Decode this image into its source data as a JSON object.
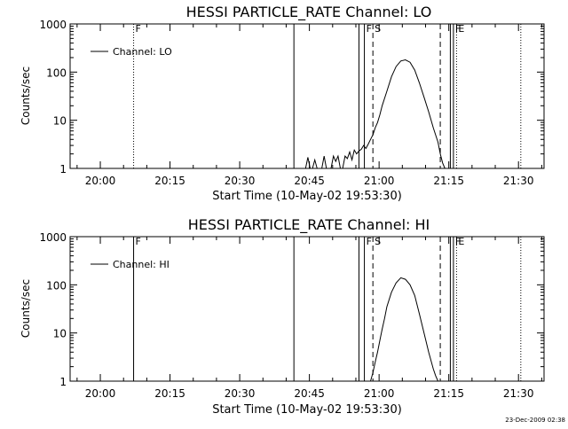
{
  "footer_text": "23-Dec-2009 02:38",
  "colors": {
    "line": "#000000",
    "background": "#ffffff"
  },
  "chart_data": [
    {
      "type": "line",
      "title": "HESSI PARTICLE_RATE Channel: LO",
      "xlabel": "Start Time (10-May-02 19:53:30)",
      "ylabel": "Counts/sec",
      "yscale": "log",
      "xlim": [
        "19:53:30",
        "21:35:30"
      ],
      "ylim": [
        1,
        1000
      ],
      "xtick_labels": [
        "20:00",
        "20:15",
        "20:30",
        "20:45",
        "21:00",
        "21:15",
        "21:30"
      ],
      "ytick_labels": [
        "1",
        "10",
        "100",
        "1000"
      ],
      "legend": {
        "position": "top-left",
        "entries": [
          "Channel: LO"
        ]
      },
      "series": [
        {
          "name": "Channel: LO",
          "x": [
            "20:44:10",
            "20:44:40",
            "20:45:10",
            "20:45:40",
            "20:46:10",
            "20:46:40",
            "20:47:10",
            "20:47:40",
            "20:48:10",
            "20:48:40",
            "20:49:10",
            "20:49:40",
            "20:50:10",
            "20:50:40",
            "20:51:10",
            "20:51:40",
            "20:52:10",
            "20:52:40",
            "20:53:10",
            "20:53:40",
            "20:54:10",
            "20:54:40",
            "20:55:10",
            "20:55:40",
            "20:56:10",
            "20:56:40",
            "20:57:10",
            "20:57:40",
            "20:58:10",
            "20:58:40",
            "20:59:10",
            "20:59:40",
            "21:00:10",
            "21:00:40",
            "21:01:40",
            "21:02:40",
            "21:03:40",
            "21:04:40",
            "21:05:40",
            "21:06:40",
            "21:07:40",
            "21:08:40",
            "21:09:40",
            "21:10:40",
            "21:11:40",
            "21:12:40",
            "21:13:10",
            "21:13:40",
            "21:14:10"
          ],
          "y": [
            1,
            1.7,
            1,
            1,
            1.5,
            1,
            1,
            1,
            1.8,
            1,
            1,
            1,
            1.8,
            1.4,
            1.8,
            1,
            1,
            1.8,
            1.6,
            2.2,
            1.5,
            2.4,
            2,
            2.3,
            2.5,
            3,
            2.6,
            3.2,
            4,
            5,
            7,
            9,
            13,
            20,
            40,
            80,
            130,
            170,
            180,
            160,
            110,
            60,
            30,
            15,
            7,
            3.5,
            2,
            1.3,
            1
          ]
        }
      ],
      "vertical_markers": [
        {
          "x": "20:07:10",
          "style": "dotted",
          "label": "F"
        },
        {
          "x": "20:41:40",
          "style": "solid",
          "label": ""
        },
        {
          "x": "20:55:40",
          "style": "solid",
          "label": ""
        },
        {
          "x": "20:56:50",
          "style": "solid",
          "label": "F"
        },
        {
          "x": "20:58:40",
          "style": "dashed",
          "label": "S"
        },
        {
          "x": "21:13:10",
          "style": "dashed",
          "label": ""
        },
        {
          "x": "21:15:20",
          "style": "solid",
          "label": ""
        },
        {
          "x": "21:16:00",
          "style": "solid",
          "label": "F"
        },
        {
          "x": "21:16:40",
          "style": "dotted",
          "label": "E"
        },
        {
          "x": "21:30:30",
          "style": "dotted",
          "label": ""
        }
      ]
    },
    {
      "type": "line",
      "title": "HESSI PARTICLE_RATE Channel: HI",
      "xlabel": "Start Time (10-May-02 19:53:30)",
      "ylabel": "Counts/sec",
      "yscale": "log",
      "xlim": [
        "19:53:30",
        "21:35:30"
      ],
      "ylim": [
        1,
        1000
      ],
      "xtick_labels": [
        "20:00",
        "20:15",
        "20:30",
        "20:45",
        "21:00",
        "21:15",
        "21:30"
      ],
      "ytick_labels": [
        "1",
        "10",
        "100",
        "1000"
      ],
      "legend": {
        "position": "top-left",
        "entries": [
          "Channel: HI"
        ]
      },
      "series": [
        {
          "name": "Channel: HI",
          "x": [
            "20:58:10",
            "20:58:40",
            "20:59:10",
            "20:59:40",
            "21:00:10",
            "21:00:40",
            "21:01:10",
            "21:01:40",
            "21:02:40",
            "21:03:40",
            "21:04:40",
            "21:05:40",
            "21:06:40",
            "21:07:40",
            "21:08:40",
            "21:09:40",
            "21:10:40",
            "21:11:40",
            "21:12:10",
            "21:12:40"
          ],
          "y": [
            1,
            1.5,
            2.5,
            4,
            7,
            12,
            20,
            35,
            70,
            110,
            140,
            130,
            100,
            60,
            25,
            10,
            4,
            1.8,
            1.3,
            1
          ]
        }
      ],
      "vertical_markers": [
        {
          "x": "20:07:10",
          "style": "solid",
          "label": "F"
        },
        {
          "x": "20:41:40",
          "style": "solid",
          "label": ""
        },
        {
          "x": "20:55:40",
          "style": "solid",
          "label": ""
        },
        {
          "x": "20:56:50",
          "style": "solid",
          "label": "F"
        },
        {
          "x": "20:58:40",
          "style": "dashed",
          "label": "S"
        },
        {
          "x": "21:13:10",
          "style": "dashed",
          "label": ""
        },
        {
          "x": "21:15:20",
          "style": "solid",
          "label": ""
        },
        {
          "x": "21:16:00",
          "style": "solid",
          "label": "F"
        },
        {
          "x": "21:16:40",
          "style": "dotted",
          "label": "E"
        },
        {
          "x": "21:30:30",
          "style": "dotted",
          "label": ""
        }
      ]
    }
  ]
}
